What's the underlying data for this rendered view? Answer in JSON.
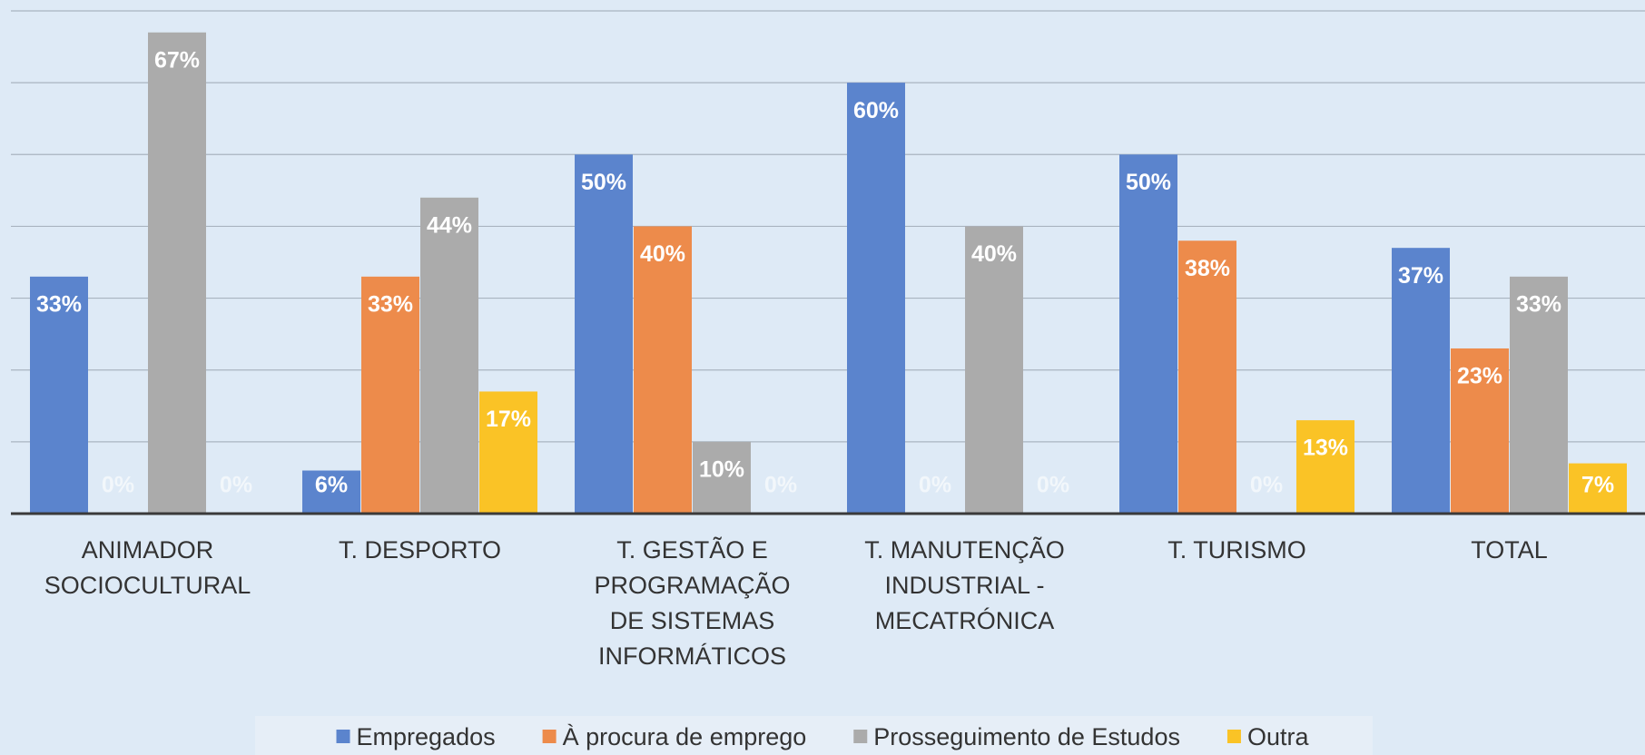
{
  "chart_data": {
    "type": "bar",
    "categories": [
      "ANIMADOR SOCIOCULTURAL",
      "T. DESPORTO",
      "T. GESTÃO E PROGRAMAÇÃO DE SISTEMAS INFORMÁTICOS",
      "T. MANUTENÇÃO INDUSTRIAL - MECATRÓNICA",
      "T. TURISMO",
      "TOTAL"
    ],
    "series": [
      {
        "name": "Empregados",
        "color": "#5b84cd",
        "values": [
          33,
          6,
          50,
          60,
          50,
          37
        ],
        "value_labels": [
          "33%",
          "6%",
          "50%",
          "60%",
          "50%",
          "37%"
        ]
      },
      {
        "name": "À procura de emprego",
        "color": "#ed8b4b",
        "values": [
          0,
          33,
          40,
          0,
          38,
          23
        ],
        "value_labels": [
          "0%",
          "33%",
          "40%",
          "0%",
          "38%",
          "23%"
        ]
      },
      {
        "name": "Prosseguimento de Estudos",
        "color": "#ababab",
        "values": [
          67,
          44,
          10,
          40,
          0,
          33
        ],
        "value_labels": [
          "67%",
          "44%",
          "10%",
          "40%",
          "0%",
          "33%"
        ]
      },
      {
        "name": "Outra",
        "color": "#fac326",
        "values": [
          0,
          17,
          0,
          0,
          13,
          7
        ],
        "value_labels": [
          "0%",
          "17%",
          "0%",
          "0%",
          "13%",
          "7%"
        ]
      }
    ],
    "ylim": [
      0,
      70
    ],
    "yticks": [
      0,
      10,
      20,
      30,
      40,
      50,
      60,
      70
    ],
    "grid": true,
    "legend": "bottom"
  }
}
